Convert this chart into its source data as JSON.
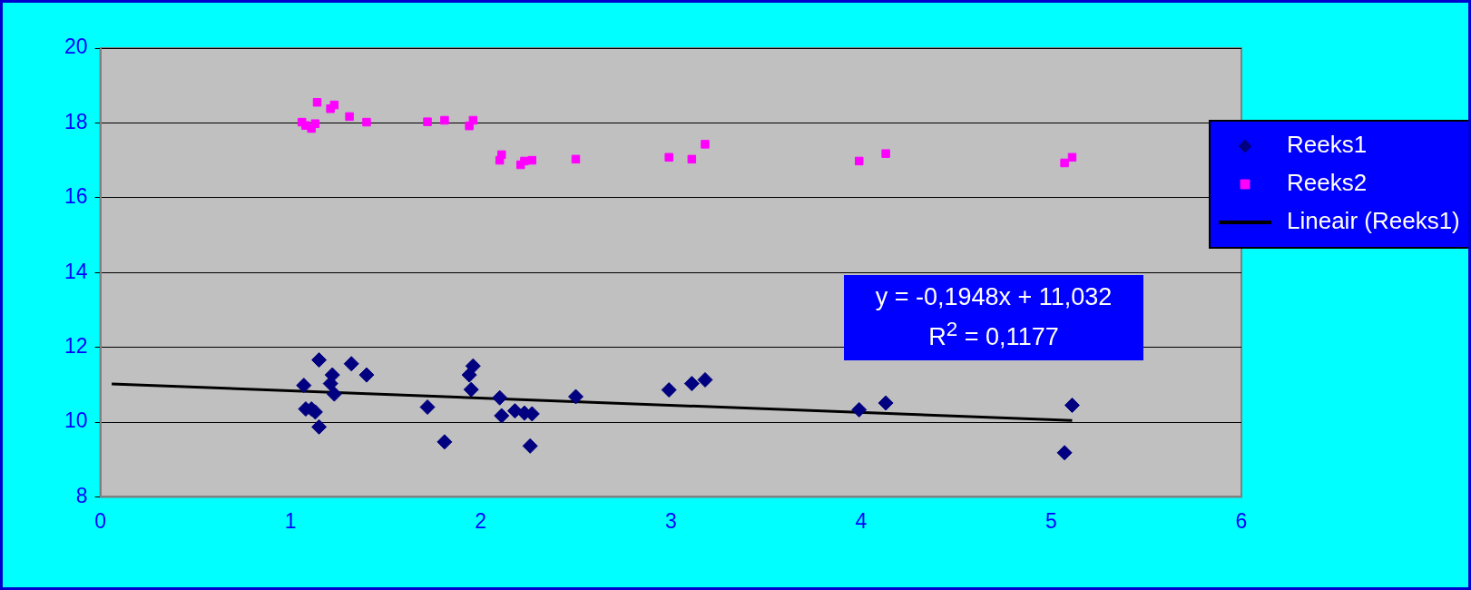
{
  "chart_data": {
    "type": "scatter",
    "xlim": [
      0,
      6
    ],
    "xticks": [
      0,
      1,
      2,
      3,
      4,
      5,
      6
    ],
    "ylim": [
      8,
      20
    ],
    "yticks": [
      8,
      10,
      12,
      14,
      16,
      18,
      20
    ],
    "grid": "y",
    "legend": "right",
    "series": [
      {
        "name": "Reeks1",
        "type": "scatter",
        "marker": "diamond",
        "color": "#000080",
        "x": [
          1.07,
          1.08,
          1.11,
          1.13,
          1.15,
          1.15,
          1.21,
          1.22,
          1.23,
          1.32,
          1.4,
          1.72,
          1.81,
          1.94,
          1.95,
          1.96,
          2.1,
          2.11,
          2.18,
          2.23,
          2.26,
          2.27,
          2.5,
          2.99,
          3.11,
          3.18,
          3.99,
          4.13,
          5.07,
          5.11
        ],
        "values": [
          10.98,
          10.35,
          10.35,
          10.27,
          9.87,
          11.66,
          11.03,
          11.26,
          10.75,
          11.56,
          11.26,
          10.4,
          9.47,
          11.26,
          10.87,
          11.5,
          10.65,
          10.17,
          10.3,
          10.24,
          9.36,
          10.22,
          10.68,
          10.86,
          11.03,
          11.13,
          10.33,
          10.51,
          9.18,
          10.45
        ]
      },
      {
        "name": "Reeks2",
        "type": "scatter",
        "marker": "square",
        "color": "#ff00ff",
        "x": [
          1.06,
          1.08,
          1.11,
          1.13,
          1.14,
          1.21,
          1.23,
          1.31,
          1.4,
          1.72,
          1.81,
          1.94,
          1.96,
          2.1,
          2.11,
          2.21,
          2.23,
          2.27,
          2.5,
          2.99,
          3.11,
          3.18,
          3.99,
          4.13,
          5.07,
          5.11
        ],
        "values": [
          18.02,
          17.93,
          17.85,
          17.98,
          18.55,
          18.38,
          18.48,
          18.17,
          18.02,
          18.03,
          18.07,
          17.92,
          18.07,
          17.0,
          17.15,
          16.88,
          16.98,
          17.0,
          17.03,
          17.08,
          17.03,
          17.43,
          16.98,
          17.18,
          16.93,
          17.08
        ]
      },
      {
        "name": "Lineair (Reeks1)",
        "type": "line",
        "marker": "none",
        "color": "#000000",
        "x": [
          0.06,
          5.11
        ],
        "values": [
          11.02,
          10.04
        ]
      }
    ],
    "annotations": [
      "y = -0,1948x + 11,032",
      "R$^{2}$ = 0,1177"
    ]
  }
}
